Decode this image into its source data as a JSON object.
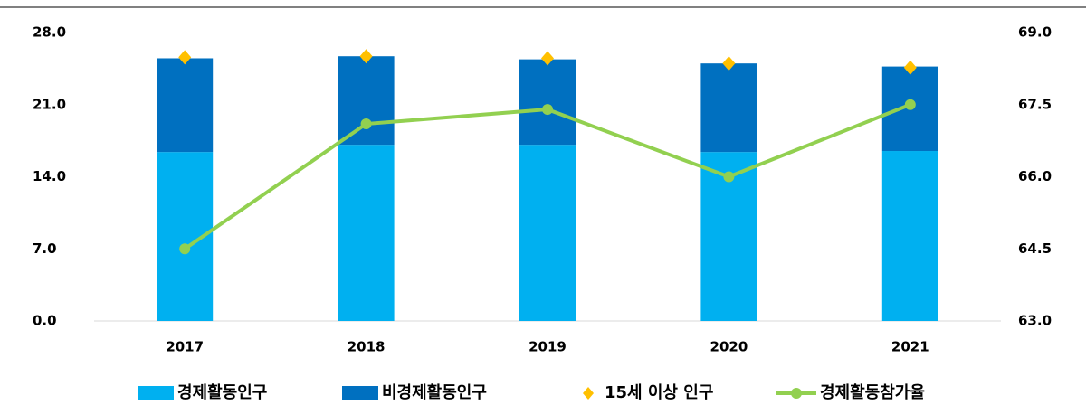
{
  "chart_data": {
    "type": "combo",
    "categories": [
      "2017",
      "2018",
      "2019",
      "2020",
      "2021"
    ],
    "series": [
      {
        "name": "경제활동인구",
        "type": "bar",
        "color": "#00b0f0",
        "values": [
          16.4,
          17.1,
          17.1,
          16.4,
          16.5
        ]
      },
      {
        "name": "비경제활동인구",
        "type": "bar",
        "color": "#0070c0",
        "values": [
          9.1,
          8.6,
          8.3,
          8.6,
          8.2
        ]
      },
      {
        "name": "15세 이상 인구",
        "type": "marker",
        "color": "#ffc000",
        "values": [
          25.6,
          25.7,
          25.5,
          25.0,
          24.6
        ]
      },
      {
        "name": "경제활동참가율",
        "type": "line",
        "axis": "y2",
        "color": "#92d050",
        "values": [
          64.5,
          67.1,
          67.4,
          66.0,
          67.5
        ]
      }
    ],
    "ylim": [
      0,
      28
    ],
    "yticks": [
      {
        "value": 0,
        "label": "0.0"
      },
      {
        "value": 7,
        "label": "7.0"
      },
      {
        "value": 14,
        "label": "14.0"
      },
      {
        "value": 21,
        "label": "21.0"
      },
      {
        "value": 28,
        "label": "28.0"
      }
    ],
    "y2lim": [
      63,
      69
    ],
    "y2ticks": [
      {
        "value": 63,
        "label": "63.0"
      },
      {
        "value": 64.5,
        "label": "64.5"
      },
      {
        "value": 66,
        "label": "66.0"
      },
      {
        "value": 67.5,
        "label": "67.5"
      },
      {
        "value": 69,
        "label": "69.0"
      }
    ],
    "grid": false,
    "legend": "bottom"
  }
}
